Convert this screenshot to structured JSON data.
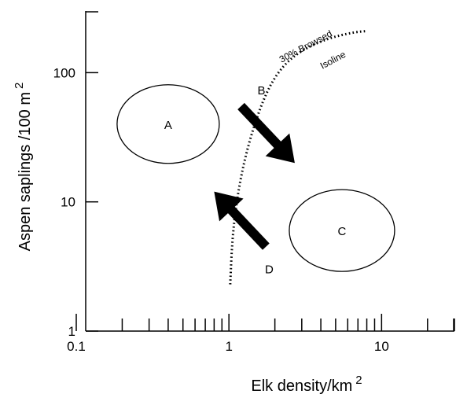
{
  "chart_data": {
    "type": "scatter",
    "xscale": "log",
    "yscale": "log",
    "xlim": [
      0.1,
      30
    ],
    "ylim": [
      1,
      300
    ],
    "xlabel": "Elk density/km",
    "xlabel_sup": "2",
    "ylabel": "Aspen saplings /100 m",
    "ylabel_sup": "2",
    "x_ticks": [
      {
        "value": 0.1,
        "label": "0.1"
      },
      {
        "value": 1,
        "label": "1"
      },
      {
        "value": 10,
        "label": "10"
      }
    ],
    "y_ticks": [
      {
        "value": 1,
        "label": "1"
      },
      {
        "value": 10,
        "label": "10"
      },
      {
        "value": 100,
        "label": "100"
      }
    ],
    "regions": [
      {
        "label": "A",
        "x": 0.4,
        "y": 40
      },
      {
        "label": "C",
        "x": 5.5,
        "y": 6
      }
    ],
    "arrows": [
      {
        "label": "B",
        "from": {
          "x": 1.2,
          "y": 55
        },
        "to": {
          "x": 2.7,
          "y": 20
        }
      },
      {
        "label": "D",
        "from": {
          "x": 1.75,
          "y": 4.5
        },
        "to": {
          "x": 0.8,
          "y": 12
        }
      }
    ],
    "isoline": {
      "label_line1": "30% Browsed",
      "label_line2": "Isoline",
      "points": [
        {
          "x": 1.02,
          "y": 2.3
        },
        {
          "x": 1.05,
          "y": 5
        },
        {
          "x": 1.12,
          "y": 10
        },
        {
          "x": 1.25,
          "y": 20
        },
        {
          "x": 1.45,
          "y": 38
        },
        {
          "x": 1.75,
          "y": 70
        },
        {
          "x": 2.2,
          "y": 110
        },
        {
          "x": 3,
          "y": 150
        },
        {
          "x": 4.5,
          "y": 185
        },
        {
          "x": 6.5,
          "y": 205
        },
        {
          "x": 8,
          "y": 210
        }
      ]
    }
  }
}
